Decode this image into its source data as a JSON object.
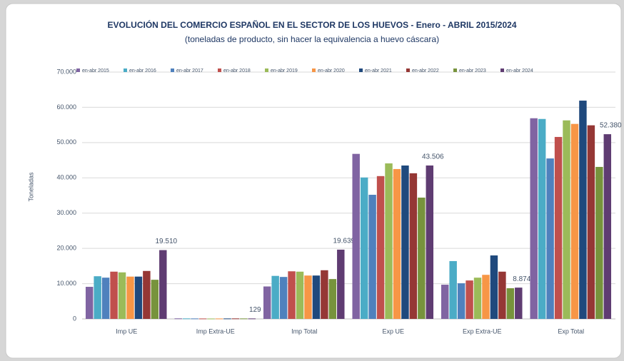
{
  "chart_data": {
    "type": "bar",
    "title": "EVOLUCIÓN DEL COMERCIO ESPAÑOL EN EL SECTOR DE LOS HUEVOS - Enero - ABRIL 2015/2024",
    "subtitle": "(toneladas de producto, sin hacer la equivalencia a huevo cáscara)",
    "y_label": "Toneladas",
    "categories": [
      "Imp UE",
      "Imp Extra-UE",
      "Imp Total",
      "Exp UE",
      "Exp Extra-UE",
      "Exp Total"
    ],
    "series": [
      {
        "name": "en-abr 2015",
        "color": "#8064a2",
        "values": [
          9100,
          150,
          9200,
          46800,
          9700,
          56900
        ]
      },
      {
        "name": "en-abr 2016",
        "color": "#4bacc6",
        "values": [
          12100,
          140,
          12200,
          40100,
          16400,
          56700
        ]
      },
      {
        "name": "en-abr 2017",
        "color": "#4f81bd",
        "values": [
          11700,
          130,
          11900,
          35200,
          10100,
          45500
        ]
      },
      {
        "name": "en-abr 2018",
        "color": "#c0504d",
        "values": [
          13400,
          120,
          13500,
          40500,
          10900,
          51600
        ]
      },
      {
        "name": "en-abr 2019",
        "color": "#9bbb59",
        "values": [
          13200,
          110,
          13400,
          44100,
          11700,
          56300
        ]
      },
      {
        "name": "en-abr 2020",
        "color": "#f79646",
        "values": [
          12000,
          120,
          12300,
          42500,
          12500,
          55300
        ]
      },
      {
        "name": "en-abr 2021",
        "color": "#1f497d",
        "values": [
          12000,
          130,
          12300,
          43500,
          18000,
          61900
        ]
      },
      {
        "name": "en-abr 2022",
        "color": "#953735",
        "values": [
          13600,
          140,
          13800,
          41300,
          13400,
          54900
        ]
      },
      {
        "name": "en-abr 2023",
        "color": "#77933c",
        "values": [
          11100,
          130,
          11300,
          34400,
          8700,
          43100
        ]
      },
      {
        "name": "en-abr 2024",
        "color": "#5f3c72",
        "values": [
          19510,
          129,
          19639,
          43506,
          8874,
          52380
        ],
        "value_labels": [
          "19.510",
          "129",
          "19.639",
          "43.506",
          "8.874",
          "52.380"
        ]
      }
    ],
    "ylim": [
      0,
      70000
    ],
    "yticks": [
      0,
      {
        "value": 10000,
        "label": "10.000"
      },
      {
        "value": 20000,
        "label": "20.000"
      },
      {
        "value": 30000,
        "label": "30.000"
      },
      {
        "value": 40000,
        "label": "40.000"
      },
      {
        "value": 50000,
        "label": "50.000"
      },
      {
        "value": 60000,
        "label": "60.000"
      },
      {
        "value": 70000,
        "label": "70.000"
      }
    ],
    "grid": true,
    "legend": "top"
  }
}
